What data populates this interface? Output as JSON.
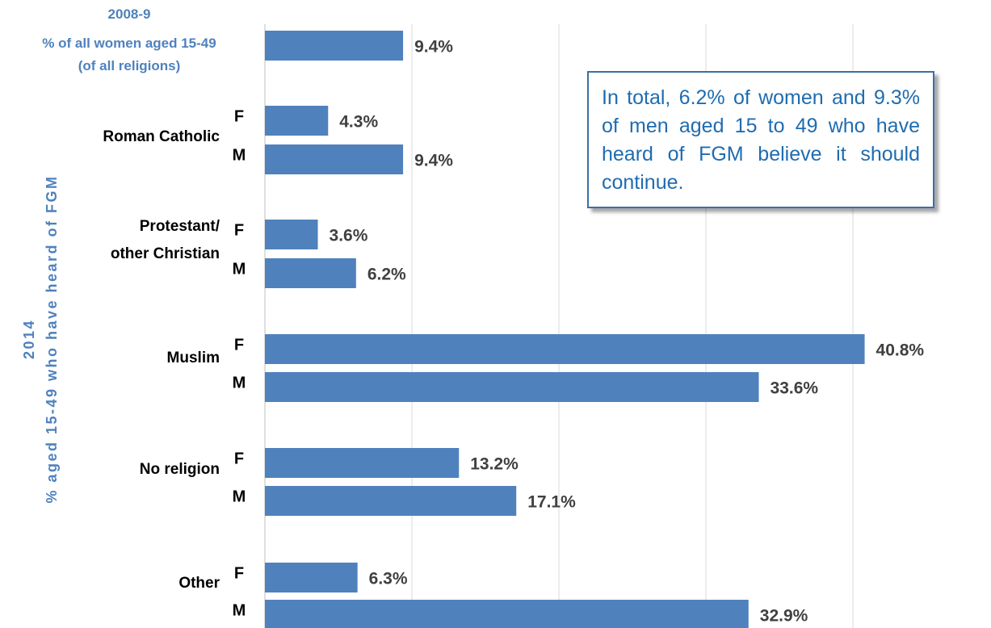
{
  "titles": {
    "period_2008": "2008-9",
    "subtitle_line1": "% of all women aged 15-49",
    "subtitle_line2": "(of all religions)",
    "ylabel_line1": "2014",
    "ylabel_line2": "% aged 15-49 who have heard of FGM"
  },
  "note": {
    "text": "In total, 6.2% of women and 9.3% of men aged 15 to 49 who have heard of FGM believe it should continue."
  },
  "colors": {
    "bar": "#4f81bd",
    "grid": "#d9d9d9",
    "title": "#4f81bd",
    "note_text": "#1f6cb0"
  },
  "chart_data": {
    "type": "bar",
    "orientation": "horizontal",
    "unit": "%",
    "xlim": [
      0,
      45
    ],
    "grid": "vertical lines every 10",
    "groups": [
      {
        "label": "",
        "bars": [
          {
            "sex": "",
            "value": 9.4,
            "label": "9.4%"
          }
        ]
      },
      {
        "label": "Roman Catholic",
        "bars": [
          {
            "sex": "F",
            "value": 4.3,
            "label": "4.3%"
          },
          {
            "sex": "M",
            "value": 9.4,
            "label": "9.4%"
          }
        ]
      },
      {
        "label": "Protestant/ other Christian",
        "bars": [
          {
            "sex": "F",
            "value": 3.6,
            "label": "3.6%"
          },
          {
            "sex": "M",
            "value": 6.2,
            "label": "6.2%"
          }
        ]
      },
      {
        "label": "Muslim",
        "bars": [
          {
            "sex": "F",
            "value": 40.8,
            "label": "40.8%"
          },
          {
            "sex": "M",
            "value": 33.6,
            "label": "33.6%"
          }
        ]
      },
      {
        "label": "No religion",
        "bars": [
          {
            "sex": "F",
            "value": 13.2,
            "label": "13.2%"
          },
          {
            "sex": "M",
            "value": 17.1,
            "label": "17.1%"
          }
        ]
      },
      {
        "label": "Other",
        "bars": [
          {
            "sex": "F",
            "value": 6.3,
            "label": "6.3%"
          },
          {
            "sex": "M",
            "value": 32.9,
            "label": "32.9%"
          }
        ]
      }
    ]
  }
}
